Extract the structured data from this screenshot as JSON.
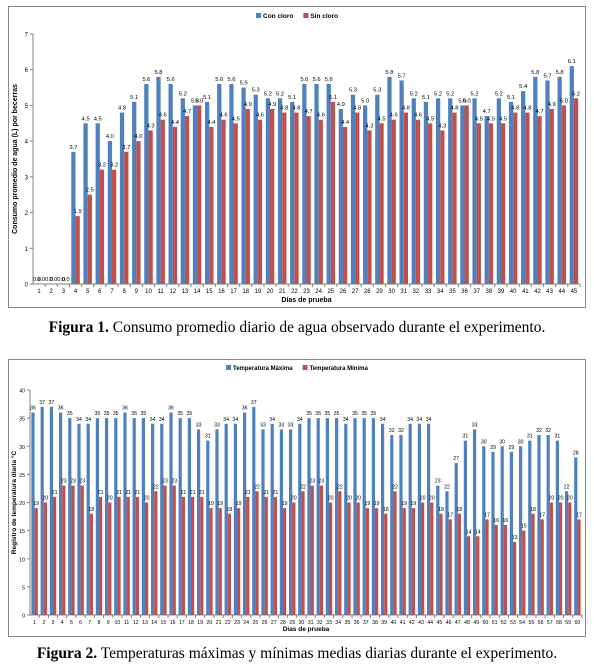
{
  "colors": {
    "series1": "#4f81bd",
    "series2": "#c0504d",
    "axis": "#808080"
  },
  "figures": [
    {
      "caption_label": "Figura 1.",
      "caption_text": " Consumo promedio diario de agua observado durante el experimento."
    },
    {
      "caption_label": "Figura 2.",
      "caption_text": " Temperaturas máximas y mínimas medias diarias durante el experimento."
    }
  ],
  "chart_data": [
    {
      "type": "bar",
      "xlabel": "Días de prueba",
      "ylabel": "Consumo promedio de agua (L) por becerras",
      "ylim": [
        0,
        7
      ],
      "yticks": [
        0,
        1,
        2,
        3,
        4,
        5,
        6,
        7
      ],
      "legend_position": "top-center",
      "grid": false,
      "categories": [
        "1",
        "2",
        "3",
        "4",
        "5",
        "6",
        "7",
        "8",
        "9",
        "10",
        "11",
        "12",
        "13",
        "14",
        "15",
        "16",
        "17",
        "18",
        "19",
        "20",
        "21",
        "22",
        "23",
        "24",
        "25",
        "26",
        "27",
        "28",
        "29",
        "30",
        "31",
        "32",
        "33",
        "34",
        "35",
        "36",
        "37",
        "38",
        "39",
        "40",
        "41",
        "42",
        "43",
        "44",
        "45"
      ],
      "series": [
        {
          "name": "Con cloro",
          "values": [
            0.0,
            0.0,
            0.0,
            3.7,
            4.5,
            4.5,
            4.0,
            4.8,
            5.1,
            5.6,
            5.8,
            5.6,
            5.2,
            5.0,
            5.1,
            5.6,
            5.6,
            5.5,
            5.3,
            5.2,
            5.2,
            5.1,
            5.6,
            5.6,
            5.6,
            4.9,
            5.3,
            5.0,
            5.3,
            5.8,
            5.7,
            5.2,
            5.1,
            5.2,
            5.2,
            5.0,
            5.2,
            4.7,
            5.2,
            5.1,
            5.4,
            5.8,
            5.7,
            5.8,
            6.1
          ]
        },
        {
          "name": "Sin cloro",
          "values": [
            0.0,
            0.0,
            0.0,
            1.9,
            2.5,
            3.2,
            3.2,
            3.7,
            4.0,
            4.3,
            4.6,
            4.4,
            4.7,
            5.0,
            4.4,
            4.6,
            4.5,
            4.9,
            4.6,
            4.9,
            4.8,
            4.8,
            4.7,
            4.6,
            5.1,
            4.4,
            4.8,
            4.3,
            4.5,
            4.6,
            4.8,
            4.6,
            4.5,
            4.3,
            4.8,
            5.0,
            4.5,
            4.5,
            4.5,
            4.8,
            4.8,
            4.7,
            4.9,
            5.0,
            5.2
          ]
        }
      ]
    },
    {
      "type": "bar",
      "xlabel": "Días de prueba",
      "ylabel": "Registro de temperatura diaria °C",
      "ylim": [
        0,
        40
      ],
      "yticks": [
        0,
        5,
        10,
        15,
        20,
        25,
        30,
        35,
        40
      ],
      "legend_position": "top-center",
      "grid": false,
      "categories": [
        "1",
        "2",
        "3",
        "4",
        "5",
        "6",
        "7",
        "8",
        "9",
        "10",
        "11",
        "12",
        "13",
        "14",
        "15",
        "16",
        "17",
        "18",
        "19",
        "20",
        "21",
        "22",
        "23",
        "24",
        "25",
        "26",
        "27",
        "28",
        "29",
        "30",
        "31",
        "32",
        "33",
        "34",
        "35",
        "36",
        "37",
        "38",
        "39",
        "40",
        "41",
        "42",
        "43",
        "44",
        "45",
        "46",
        "47",
        "48",
        "49",
        "50",
        "51",
        "52",
        "53",
        "54",
        "55",
        "56",
        "57",
        "58",
        "59",
        "60"
      ],
      "series": [
        {
          "name": "Temperatura Máxima",
          "values": [
            36,
            37,
            37,
            36,
            35,
            34,
            34,
            35,
            35,
            35,
            36,
            35,
            35,
            34,
            34,
            36,
            35,
            35,
            33,
            31,
            33,
            34,
            34,
            36,
            37,
            33,
            34,
            33,
            33,
            34,
            35,
            35,
            35,
            35,
            34,
            35,
            35,
            35,
            34,
            32,
            32,
            34,
            34,
            34,
            23,
            22,
            27,
            31,
            33,
            30,
            29,
            30,
            29,
            30,
            31,
            32,
            32,
            31,
            22,
            28
          ]
        },
        {
          "name": "Temperatura Mínima",
          "values": [
            19,
            20,
            21,
            23,
            23,
            23,
            18,
            21,
            20,
            21,
            21,
            21,
            20,
            22,
            23,
            23,
            21,
            21,
            21,
            19,
            19,
            18,
            19,
            21,
            22,
            21,
            21,
            19,
            20,
            22,
            23,
            23,
            20,
            22,
            20,
            20,
            19,
            19,
            18,
            22,
            19,
            19,
            20,
            20,
            18,
            17,
            18,
            14,
            14,
            17,
            16,
            16,
            13,
            15,
            18,
            17,
            20,
            20,
            20,
            17
          ]
        }
      ]
    }
  ]
}
